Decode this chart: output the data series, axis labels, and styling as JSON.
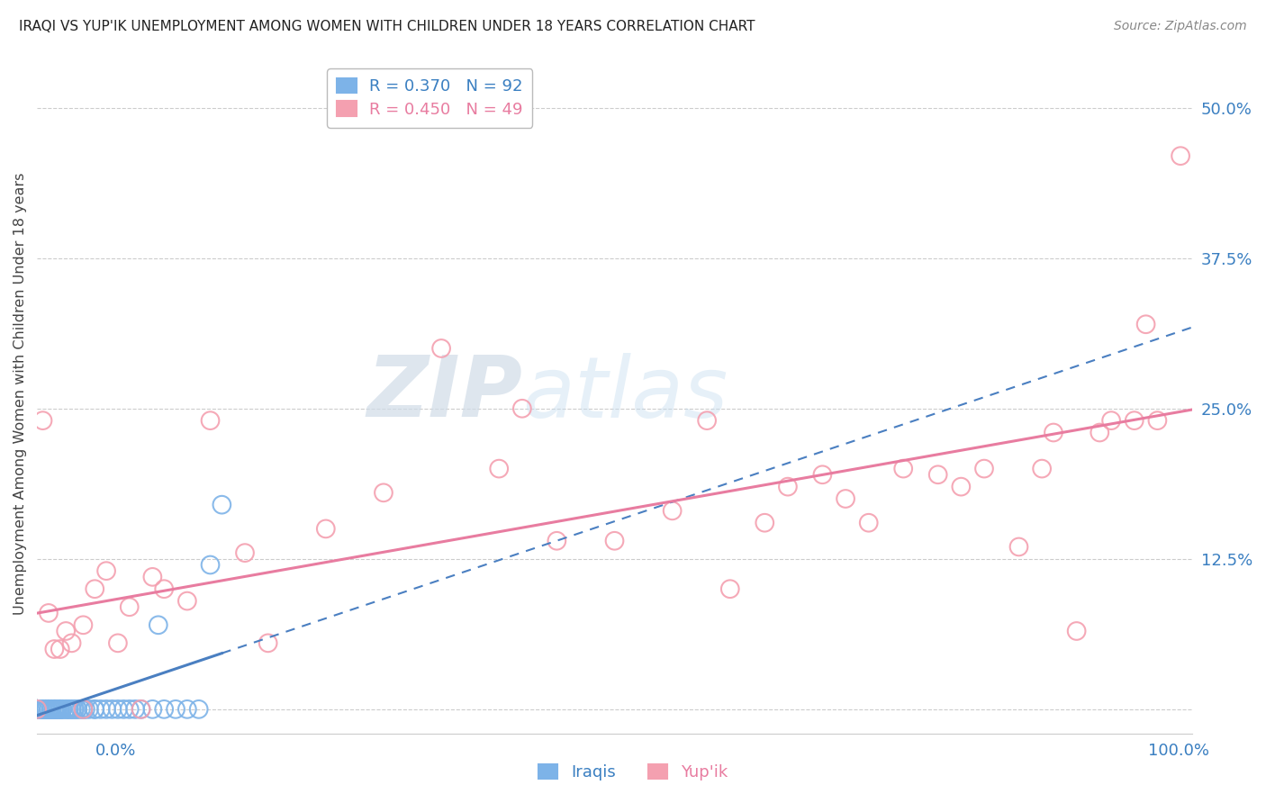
{
  "title": "IRAQI VS YUP'IK UNEMPLOYMENT AMONG WOMEN WITH CHILDREN UNDER 18 YEARS CORRELATION CHART",
  "source": "Source: ZipAtlas.com",
  "ylabel": "Unemployment Among Women with Children Under 18 years",
  "ytick_labels": [
    "",
    "12.5%",
    "25.0%",
    "37.5%",
    "50.0%"
  ],
  "ytick_values": [
    0.0,
    0.125,
    0.25,
    0.375,
    0.5
  ],
  "xlim": [
    0.0,
    1.0
  ],
  "ylim": [
    -0.02,
    0.545
  ],
  "iraqis_color": "#7db3e8",
  "yupik_color": "#f4a0b0",
  "iraqis_line_color": "#4a7fc1",
  "yupik_line_color": "#e87ca0",
  "watermark_zip": "ZIP",
  "watermark_atlas": "atlas",
  "iraqis_x": [
    0.0,
    0.0,
    0.0,
    0.0,
    0.0,
    0.0,
    0.0,
    0.0,
    0.0,
    0.0,
    0.0,
    0.0,
    0.0,
    0.0,
    0.0,
    0.0,
    0.0,
    0.0,
    0.0,
    0.0,
    0.0,
    0.0,
    0.0,
    0.0,
    0.0,
    0.0,
    0.0,
    0.0,
    0.0,
    0.0,
    0.003,
    0.003,
    0.005,
    0.005,
    0.005,
    0.007,
    0.007,
    0.008,
    0.008,
    0.01,
    0.01,
    0.01,
    0.012,
    0.012,
    0.013,
    0.015,
    0.015,
    0.015,
    0.016,
    0.017,
    0.018,
    0.02,
    0.02,
    0.02,
    0.022,
    0.022,
    0.025,
    0.025,
    0.027,
    0.028,
    0.03,
    0.03,
    0.032,
    0.033,
    0.035,
    0.035,
    0.038,
    0.04,
    0.04,
    0.042,
    0.045,
    0.05,
    0.05,
    0.055,
    0.06,
    0.065,
    0.07,
    0.075,
    0.08,
    0.085,
    0.09,
    0.1,
    0.105,
    0.11,
    0.12,
    0.13,
    0.14,
    0.15,
    0.16
  ],
  "iraqis_y": [
    0.0,
    0.0,
    0.0,
    0.0,
    0.0,
    0.0,
    0.0,
    0.0,
    0.0,
    0.0,
    0.0,
    0.0,
    0.0,
    0.0,
    0.0,
    0.0,
    0.0,
    0.0,
    0.0,
    0.0,
    0.0,
    0.0,
    0.0,
    0.0,
    0.0,
    0.0,
    0.0,
    0.0,
    0.0,
    0.0,
    0.0,
    0.0,
    0.0,
    0.0,
    0.0,
    0.0,
    0.0,
    0.0,
    0.0,
    0.0,
    0.0,
    0.0,
    0.0,
    0.0,
    0.0,
    0.0,
    0.0,
    0.0,
    0.0,
    0.0,
    0.0,
    0.0,
    0.0,
    0.0,
    0.0,
    0.0,
    0.0,
    0.0,
    0.0,
    0.0,
    0.0,
    0.0,
    0.0,
    0.0,
    0.0,
    0.0,
    0.0,
    0.0,
    0.0,
    0.0,
    0.0,
    0.0,
    0.0,
    0.0,
    0.0,
    0.0,
    0.0,
    0.0,
    0.0,
    0.0,
    0.0,
    0.0,
    0.07,
    0.0,
    0.0,
    0.0,
    0.0,
    0.12,
    0.17
  ],
  "yupik_x": [
    0.0,
    0.005,
    0.01,
    0.015,
    0.02,
    0.025,
    0.03,
    0.04,
    0.04,
    0.05,
    0.06,
    0.07,
    0.08,
    0.09,
    0.1,
    0.11,
    0.13,
    0.15,
    0.18,
    0.2,
    0.25,
    0.3,
    0.35,
    0.4,
    0.42,
    0.45,
    0.5,
    0.55,
    0.58,
    0.6,
    0.63,
    0.65,
    0.68,
    0.7,
    0.72,
    0.75,
    0.78,
    0.8,
    0.82,
    0.85,
    0.87,
    0.88,
    0.9,
    0.92,
    0.93,
    0.95,
    0.96,
    0.97,
    0.99
  ],
  "yupik_y": [
    0.0,
    0.24,
    0.08,
    0.05,
    0.05,
    0.065,
    0.055,
    0.07,
    0.0,
    0.1,
    0.115,
    0.055,
    0.085,
    0.0,
    0.11,
    0.1,
    0.09,
    0.24,
    0.13,
    0.055,
    0.15,
    0.18,
    0.3,
    0.2,
    0.25,
    0.14,
    0.14,
    0.165,
    0.24,
    0.1,
    0.155,
    0.185,
    0.195,
    0.175,
    0.155,
    0.2,
    0.195,
    0.185,
    0.2,
    0.135,
    0.2,
    0.23,
    0.065,
    0.23,
    0.24,
    0.24,
    0.32,
    0.24,
    0.46
  ]
}
